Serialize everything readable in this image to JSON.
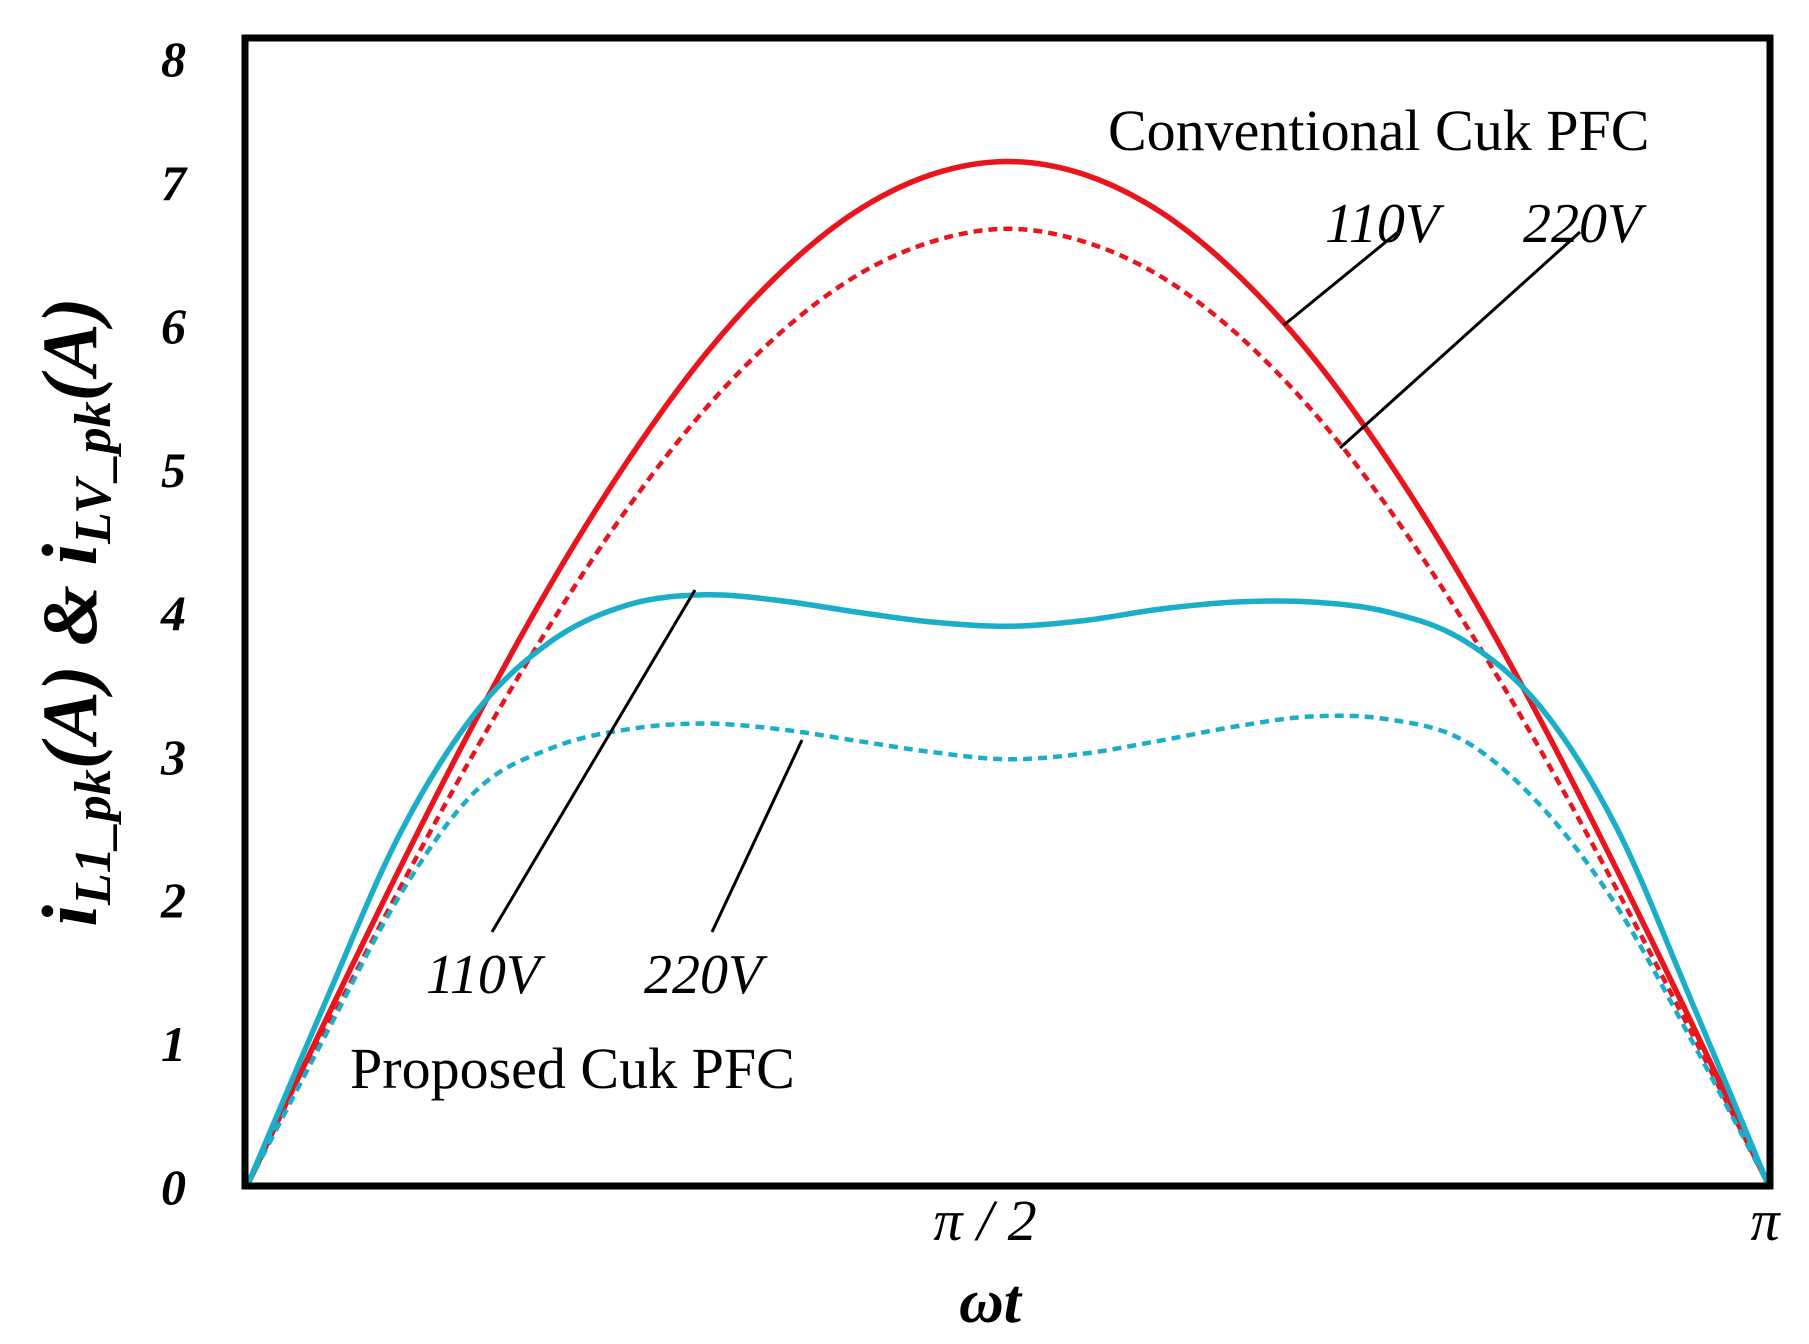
{
  "chart_data": {
    "type": "line",
    "title": "",
    "xlabel": "ωt",
    "ylabel": {
      "main1": "i",
      "sub1": "L1_pk",
      "mid": "(A) & ",
      "main2": "i",
      "sub2": "LV_pk",
      "tail": "(A)"
    },
    "xlim": [
      0,
      3.1416
    ],
    "ylim": [
      0,
      8
    ],
    "x_ticks": [
      {
        "value": 1.5708,
        "label": "π / 2"
      },
      {
        "value": 3.1416,
        "label": "π"
      }
    ],
    "y_ticks": [
      "0",
      "1",
      "2",
      "3",
      "4",
      "5",
      "6",
      "7",
      "8"
    ],
    "grid": false,
    "groups": {
      "conventional": "Conventional Cuk PFC",
      "proposed": "Proposed Cuk PFC"
    },
    "voltage_labels": {
      "conv_110": "110V",
      "conv_220": "220V",
      "prop_110": "110V",
      "prop_220": "220V"
    },
    "colors": {
      "conventional": "#e8141e",
      "proposed": "#1aaec8",
      "axes": "#000000"
    },
    "x_fraction": [
      0,
      0.05,
      0.1,
      0.15,
      0.2,
      0.25,
      0.3,
      0.35,
      0.4,
      0.45,
      0.5,
      0.55,
      0.6,
      0.65,
      0.7,
      0.75,
      0.8,
      0.85,
      0.9,
      0.95,
      1.0
    ],
    "series": [
      {
        "name": "Conventional Cuk PFC 110V",
        "group": "conventional",
        "style": "solid",
        "values": [
          0,
          1.12,
          2.21,
          3.25,
          4.21,
          5.06,
          5.79,
          6.37,
          6.8,
          7.06,
          7.15,
          7.06,
          6.8,
          6.37,
          5.79,
          5.06,
          4.21,
          3.25,
          2.21,
          1.12,
          0
        ]
      },
      {
        "name": "Conventional Cuk PFC 220V",
        "group": "conventional",
        "style": "dashed",
        "values": [
          0,
          1.05,
          2.07,
          3.04,
          3.93,
          4.73,
          5.41,
          5.95,
          6.35,
          6.59,
          6.68,
          6.59,
          6.35,
          5.95,
          5.41,
          4.73,
          3.93,
          3.04,
          2.07,
          1.05,
          0
        ]
      },
      {
        "name": "Proposed Cuk PFC 110V",
        "group": "proposed",
        "style": "solid",
        "values": [
          0,
          1.25,
          2.45,
          3.3,
          3.8,
          4.05,
          4.12,
          4.08,
          4.0,
          3.93,
          3.9,
          3.94,
          4.02,
          4.07,
          4.07,
          4.0,
          3.8,
          3.34,
          2.5,
          1.27,
          0
        ]
      },
      {
        "name": "Proposed Cuk PFC 220V",
        "group": "proposed",
        "style": "dashed",
        "values": [
          0,
          1.02,
          2.02,
          2.75,
          3.05,
          3.18,
          3.22,
          3.18,
          3.1,
          3.02,
          2.97,
          3.01,
          3.1,
          3.2,
          3.27,
          3.25,
          3.1,
          2.65,
          1.95,
          1.0,
          0
        ]
      }
    ]
  }
}
